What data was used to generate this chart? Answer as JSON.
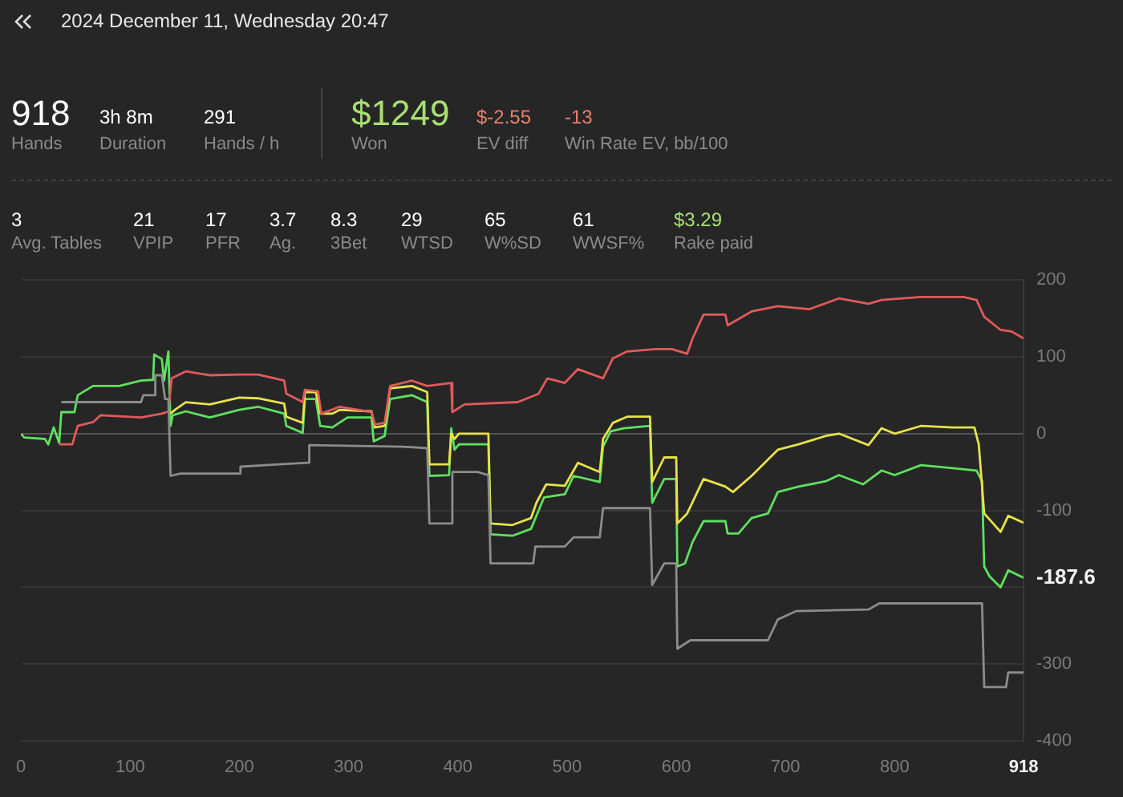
{
  "chart_data": [
    {
      "type": "other",
      "title": "2024 December 11, Wednesday 20:47",
      "annotations": [
        "918",
        "Hands",
        "3h 8m",
        "Duration",
        "291",
        "Hands / h",
        "$1249",
        "Won",
        "$-2.55",
        "EV diff",
        "-13",
        "Win Rate EV, bb/100",
        "3",
        "Avg. Tables",
        "21",
        "VPIP",
        "17",
        "PFR",
        "3.7",
        "Ag.",
        "8.3",
        "3Bet",
        "29",
        "WTSD",
        "65",
        "W%SD",
        "61",
        "WWSF%",
        "$3.29",
        "Rake paid"
      ],
      "colors": [
        "#ffffff",
        "#8a8a8a",
        "#ffffff",
        "#8a8a8a",
        "#ffffff",
        "#8a8a8a",
        "#a8e070",
        "#8a8a8a",
        "#e8806a",
        "#8a8a8a",
        "#e8806a",
        "#8a8a8a",
        "#ffffff",
        "#8a8a8a",
        "#ffffff",
        "#8a8a8a",
        "#ffffff",
        "#8a8a8a",
        "#ffffff",
        "#8a8a8a",
        "#ffffff",
        "#8a8a8a",
        "#ffffff",
        "#8a8a8a",
        "#ffffff",
        "#8a8a8a",
        "#ffffff",
        "#8a8a8a",
        "#a8e070",
        "#8a8a8a"
      ]
    },
    {
      "type": "line",
      "xlim": [
        0,
        918
      ],
      "xticks": [
        0,
        100,
        200,
        300,
        400,
        500,
        600,
        700,
        800,
        918
      ],
      "ylim": [
        -400,
        200
      ],
      "yticks": [
        200,
        100,
        0,
        -100,
        {
          "value": -200,
          "label": null
        },
        -300,
        -400
      ],
      "grid": "y",
      "legend": false,
      "marker": "none",
      "annotations": [
        {
          "text": "-187.6",
          "x": 918,
          "y": -187.6
        }
      ],
      "series": [
        {
          "color": "#8c8c8c",
          "x": [
            37,
            110,
            112,
            122,
            123,
            129,
            132,
            135,
            137,
            146,
            200,
            201,
            236,
            263,
            264,
            350,
            372,
            374,
            394,
            395,
            418,
            428,
            430,
            469,
            471,
            498,
            506,
            530,
            533,
            576,
            578,
            589,
            600,
            601,
            613,
            684,
            693,
            710,
            776,
            786,
            880,
            882,
            902,
            904,
            918
          ],
          "values": [
            41,
            41,
            50,
            50,
            76,
            76,
            45,
            45,
            -55,
            -52,
            -52,
            -43,
            -40,
            -38,
            -15,
            -17,
            -19,
            -117,
            -117,
            -50,
            -50,
            -54,
            -169,
            -169,
            -147,
            -147,
            -135,
            -135,
            -97,
            -97,
            -197,
            -169,
            -169,
            -280,
            -269,
            -269,
            -242,
            -231,
            -229,
            -221,
            -221,
            -330,
            -330,
            -311,
            -311
          ]
        },
        {
          "color": "#e05a5a",
          "x": [
            35,
            47,
            52,
            66,
            73,
            110,
            129,
            135,
            138,
            151,
            173,
            200,
            217,
            241,
            243,
            258,
            260,
            272,
            275,
            292,
            321,
            324,
            333,
            338,
            358,
            372,
            394,
            395,
            406,
            455,
            474,
            482,
            498,
            510,
            533,
            542,
            555,
            581,
            596,
            610,
            615,
            625,
            645,
            647,
            669,
            693,
            722,
            749,
            776,
            788,
            824,
            863,
            875,
            882,
            897,
            907,
            918
          ],
          "values": [
            -14,
            -14,
            10,
            15,
            24,
            21,
            26,
            29,
            72,
            81,
            76,
            77,
            77,
            69,
            52,
            41,
            57,
            55,
            26,
            35,
            28,
            12,
            14,
            62,
            69,
            62,
            66,
            28,
            38,
            41,
            52,
            72,
            66,
            84,
            72,
            98,
            107,
            110,
            110,
            104,
            124,
            155,
            155,
            141,
            159,
            166,
            162,
            176,
            169,
            174,
            178,
            178,
            174,
            152,
            135,
            133,
            124
          ]
        },
        {
          "color": "#e6e24a",
          "x": [
            137,
            141,
            151,
            173,
            200,
            217,
            241,
            243,
            258,
            260,
            270,
            274,
            285,
            292,
            321,
            324,
            333,
            338,
            358,
            372,
            374,
            392,
            394,
            397,
            401,
            428,
            430,
            450,
            467,
            472,
            481,
            498,
            510,
            530,
            533,
            542,
            555,
            576,
            578,
            589,
            600,
            601,
            610,
            625,
            645,
            652,
            669,
            693,
            712,
            737,
            749,
            776,
            788,
            800,
            824,
            853,
            873,
            877,
            882,
            897,
            904,
            918
          ],
          "values": [
            26,
            31,
            41,
            38,
            47,
            46,
            39,
            22,
            14,
            54,
            54,
            26,
            26,
            31,
            29,
            8,
            10,
            59,
            62,
            54,
            -40,
            -40,
            0,
            -7,
            0,
            0,
            -117,
            -119,
            -110,
            -90,
            -66,
            -68,
            -38,
            -50,
            -7,
            14,
            22,
            22,
            -63,
            -31,
            -31,
            -117,
            -104,
            -59,
            -69,
            -76,
            -55,
            -21,
            -14,
            -3,
            0,
            -15,
            7,
            0,
            10,
            8,
            8,
            -14,
            -104,
            -128,
            -107,
            -116
          ]
        },
        {
          "color": "#5fe05f",
          "x": [
            0,
            3,
            22,
            25,
            30,
            35,
            37,
            49,
            52,
            66,
            90,
            110,
            121,
            122,
            129,
            131,
            135,
            137,
            139,
            151,
            173,
            200,
            217,
            241,
            243,
            258,
            260,
            270,
            274,
            285,
            299,
            321,
            323,
            333,
            338,
            358,
            372,
            374,
            392,
            394,
            397,
            401,
            428,
            430,
            450,
            467,
            472,
            479,
            498,
            506,
            530,
            533,
            540,
            552,
            576,
            578,
            589,
            600,
            601,
            608,
            615,
            625,
            645,
            647,
            657,
            669,
            684,
            693,
            712,
            737,
            749,
            771,
            788,
            800,
            824,
            853,
            875,
            880,
            882,
            887,
            897,
            904,
            918
          ],
          "values": [
            0,
            -5,
            -7,
            -14,
            8,
            -12,
            28,
            28,
            50,
            62,
            62,
            69,
            70,
            103,
            97,
            69,
            107,
            10,
            24,
            29,
            21,
            31,
            35,
            26,
            10,
            1,
            45,
            45,
            10,
            8,
            21,
            21,
            -10,
            -3,
            45,
            50,
            41,
            -55,
            -54,
            7,
            -21,
            -14,
            -14,
            -131,
            -133,
            -124,
            -107,
            -83,
            -79,
            -55,
            -63,
            -17,
            3,
            7,
            10,
            -90,
            -59,
            -59,
            -173,
            -169,
            -141,
            -114,
            -114,
            -130,
            -130,
            -110,
            -104,
            -76,
            -69,
            -62,
            -54,
            -66,
            -48,
            -54,
            -41,
            -45,
            -48,
            -62,
            -173,
            -186,
            -200,
            -178,
            -187.6
          ]
        }
      ]
    }
  ]
}
